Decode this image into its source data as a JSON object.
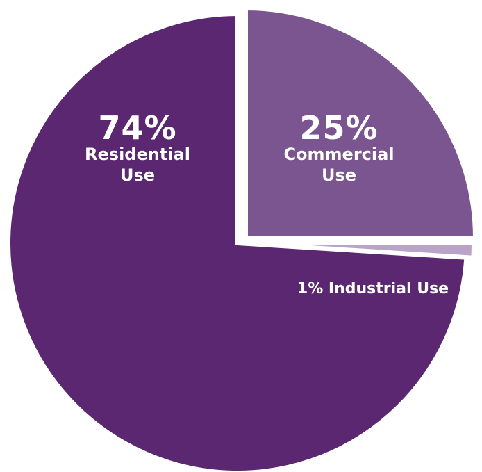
{
  "chart_data": {
    "type": "pie",
    "slices": [
      {
        "label": "Residential Use",
        "value": 74,
        "value_label": "74%",
        "name_lines": [
          "Residential",
          "Use"
        ],
        "color": "#5b2770"
      },
      {
        "label": "Commercial Use",
        "value": 25,
        "value_label": "25%",
        "name_lines": [
          "Commercial",
          "Use"
        ],
        "color": "#7b5590"
      },
      {
        "label": "Industrial Use",
        "value": 1,
        "value_label": "1% Industrial Use",
        "name_lines": [],
        "color": "#b9a4c8"
      }
    ],
    "legend": "none"
  }
}
